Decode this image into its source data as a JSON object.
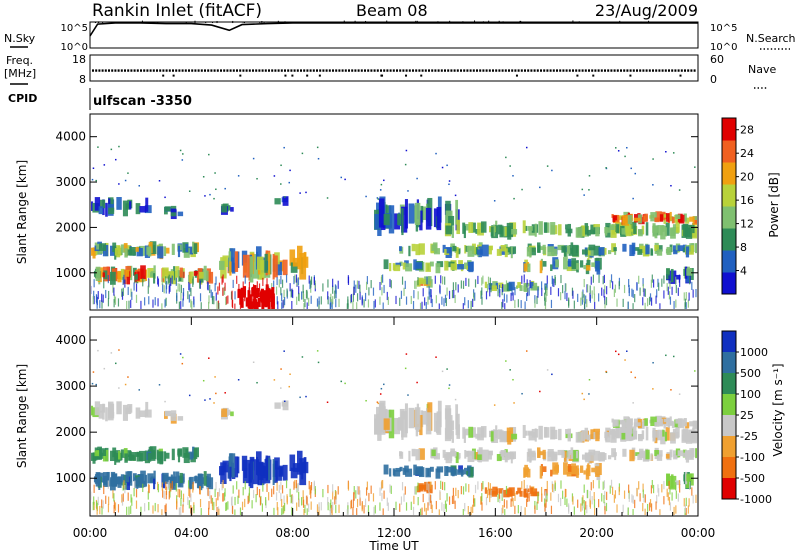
{
  "header": {
    "site": "Rankin Inlet (fitACF)",
    "beam": "Beam 08",
    "date": "23/Aug/2009",
    "program": "ulfscan -3350"
  },
  "chart_data": [
    {
      "type": "line",
      "panel": "noise",
      "left_label": "N.Sky",
      "right_label": "N.Search",
      "left_ticks": [
        "10^5",
        "10^0"
      ],
      "right_ticks": [
        "10^5",
        "10^0"
      ],
      "ylim_log10": [
        0,
        5
      ],
      "series": [
        {
          "name": "N.Sky",
          "x_hours": [
            0,
            0.3,
            1,
            2,
            3,
            4,
            4.8,
            5.5,
            6,
            7,
            8,
            10,
            12,
            14,
            16,
            17.5,
            18,
            20,
            22,
            24
          ],
          "y_log10": [
            2.3,
            4.6,
            4.8,
            4.8,
            4.7,
            4.7,
            4.4,
            3.4,
            4.5,
            4.7,
            4.8,
            4.8,
            4.8,
            4.8,
            4.8,
            4.8,
            4.8,
            4.8,
            4.8,
            4.8
          ]
        }
      ]
    },
    {
      "type": "scatter",
      "panel": "frequency",
      "left_label": "Freq.",
      "left_unit": "[MHz]",
      "right_label": "Nave",
      "left_ticks": [
        "18",
        "8"
      ],
      "right_ticks": [
        "60",
        "0"
      ],
      "ylim": [
        8,
        18
      ],
      "series": [
        {
          "name": "Freq.",
          "x_hours": [
            0,
            4,
            8,
            12,
            16,
            20,
            24
          ],
          "y_mhz": [
            12,
            12,
            12,
            12,
            12,
            12,
            12
          ]
        }
      ]
    },
    {
      "type": "heatmap",
      "panel": "power",
      "ylabel": "Slant Range [km]",
      "xlim_hours": [
        0,
        24
      ],
      "ylim_km": [
        180,
        4500
      ],
      "yticks": [
        "1000",
        "2000",
        "3000",
        "4000"
      ],
      "colorbar": {
        "label": "Power [dB]",
        "ticks": [
          "4",
          "8",
          "12",
          "16",
          "20",
          "24",
          "28"
        ],
        "range": [
          0,
          30
        ]
      },
      "colors": [
        "#1010d0",
        "#2060c0",
        "#2e8b57",
        "#7fc070",
        "#b8d23a",
        "#f0a010",
        "#f06020",
        "#e00000"
      ]
    },
    {
      "type": "heatmap",
      "panel": "velocity",
      "ylabel": "Slant Range [km]",
      "xlabel": "Time UT",
      "xlim_hours": [
        0,
        24
      ],
      "ylim_km": [
        180,
        4500
      ],
      "yticks": [
        "1000",
        "2000",
        "3000",
        "4000"
      ],
      "xticks": [
        "00:00",
        "04:00",
        "08:00",
        "12:00",
        "16:00",
        "20:00",
        "00:00"
      ],
      "colorbar": {
        "label": "Velocity [m s⁻¹]",
        "ticks": [
          "1000",
          "500",
          "100",
          "25",
          "-25",
          "-100",
          "-500",
          "-1000"
        ]
      },
      "colors": [
        "#1030c0",
        "#2f6fa0",
        "#2e8b57",
        "#7ccf3e",
        "#c8c8c8",
        "#f0a030",
        "#f07010",
        "#e00000"
      ]
    }
  ]
}
